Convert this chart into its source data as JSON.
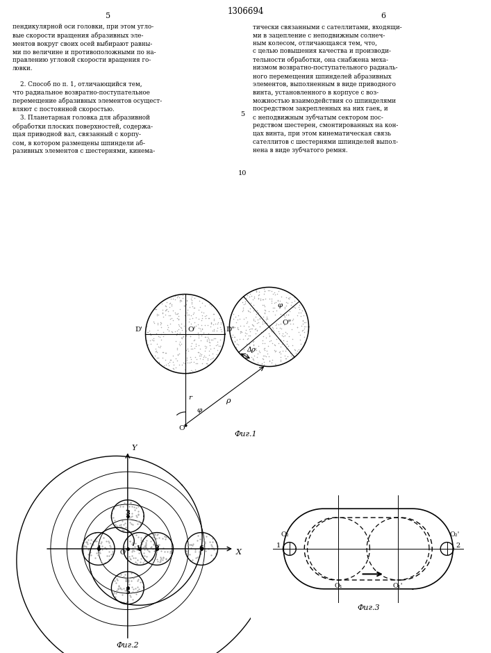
{
  "title": "1306694",
  "bg_color": "#ffffff",
  "text_color": "#000000",
  "fig1_label": "Фиг.1",
  "fig2_label": "Фиг.2",
  "fig3_label": "Фиг.3",
  "left_text": "пендикулярной оси головки, при этом угло-\nвые скорости вращения абразивных эле-\nментов вокруг своих осей выбирают равны-\nми по величине и противоположными по на-\nправлению угловой скорости вращения го-\nловки.\n\n    2. Способ по п. 1, отличающийся тем,\nчто радиальное возвратно-поступательное\nперемещение абразивных элементов осущест-\nвляют с постоянной скоростью.\n    3. Планетарная головка для абразивной\nобработки плоских поверхностей, содержа-\nщая приводной вал, связанный с корпу-\nсом, в котором размещены шпиндели аб-\nразивных элементов с шестернями, кинема-",
  "right_text": "тически связанными с сателлитами, входящи-\nми в зацепление с неподвижным солнеч-\nным колесом, отличающаяся тем, что,\nс целью повышения качества и производи-\nтельности обработки, она снабжена меха-\nнизмом возвратно-поступательного радиаль-\nного перемещения шпинделей абразивных\nэлементов, выполненным в виде приводного\nвинта, установленного в корпусе с воз-\nможностью взаимодействия со шпинделями\nпосредством закрепленных на них гаек, и\nс неподвижным зубчатым сектором пос-\nредством шестерен, смонтированных на кон-\nцах винта, при этом кинематическая связь\nсателлитов с шестернями шпинделей выпол-\nнена в виде зубчатого ремня."
}
